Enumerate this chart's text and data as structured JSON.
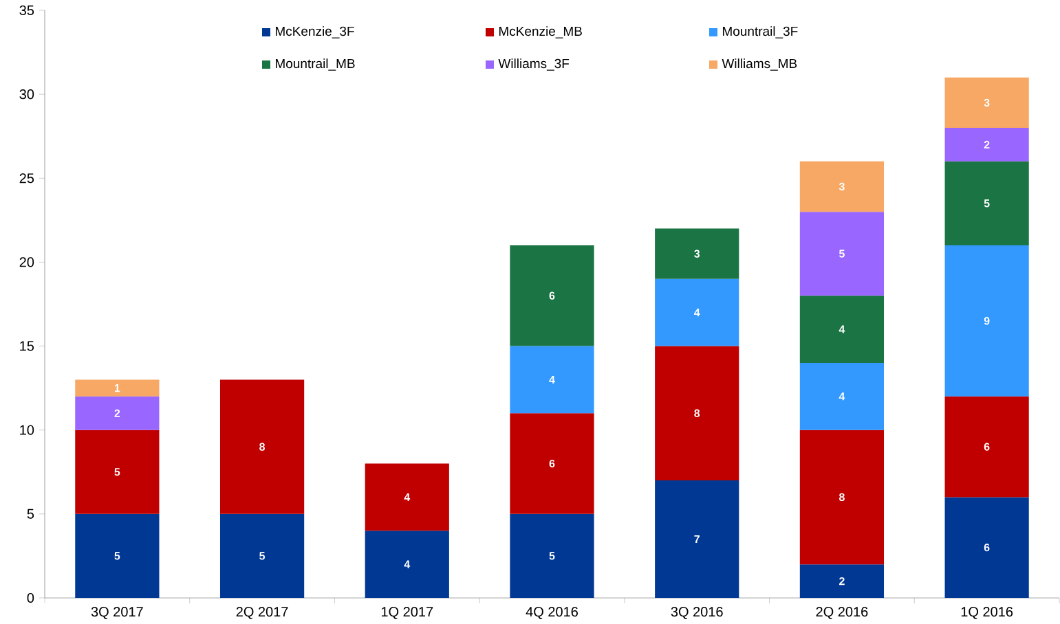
{
  "chart_data": {
    "type": "bar",
    "stacked": true,
    "categories": [
      "3Q 2017",
      "2Q 2017",
      "1Q 2017",
      "4Q 2016",
      "3Q 2016",
      "2Q 2016",
      "1Q 2016"
    ],
    "series": [
      {
        "name": "McKenzie_3F",
        "color": "#003893",
        "values": [
          5,
          5,
          4,
          5,
          7,
          2,
          6
        ]
      },
      {
        "name": "McKenzie_MB",
        "color": "#c00000",
        "values": [
          5,
          8,
          4,
          6,
          8,
          8,
          6
        ]
      },
      {
        "name": "Mountrail_3F",
        "color": "#3399ff",
        "values": [
          null,
          null,
          null,
          4,
          4,
          4,
          9
        ]
      },
      {
        "name": "Mountrail_MB",
        "color": "#1a7444",
        "values": [
          null,
          null,
          null,
          6,
          3,
          4,
          5
        ]
      },
      {
        "name": "Williams_3F",
        "color": "#9966ff",
        "values": [
          2,
          null,
          null,
          null,
          null,
          5,
          2
        ]
      },
      {
        "name": "Williams_MB",
        "color": "#f6a864",
        "values": [
          1,
          null,
          null,
          null,
          null,
          3,
          3
        ]
      }
    ],
    "ylim": [
      0,
      35
    ],
    "yticks": [
      0,
      5,
      10,
      15,
      20,
      25,
      30,
      35
    ],
    "grid": false,
    "legend": "top",
    "data_labels": true
  }
}
